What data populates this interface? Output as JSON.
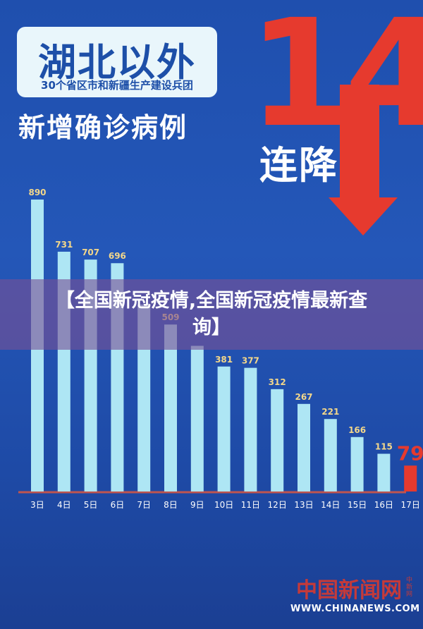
{
  "header": {
    "title": "湖北以外",
    "subtitle": "30个省区市和新疆生产建设兵团",
    "line2": "新增确诊病例",
    "big_number": "14",
    "consecutive_label": "连降"
  },
  "banner": {
    "text": "【全国新冠疫情,全国新冠疫情最新查询】"
  },
  "source": {
    "name": "中国新闻网",
    "badge": "中新网",
    "url": "WWW.CHINANEWS.COM"
  },
  "colors": {
    "bar": "#aee6f4",
    "highlight_bar": "#e63a2e",
    "axis": "#c0554f",
    "label": "#f3d78a"
  },
  "chart_data": {
    "type": "bar",
    "categories": [
      "3日",
      "4日",
      "5日",
      "6日",
      "7日",
      "8日",
      "9日",
      "10日",
      "11日",
      "12日",
      "13日",
      "14日",
      "15日",
      "16日",
      "17日"
    ],
    "values": [
      890,
      731,
      707,
      696,
      570,
      509,
      444,
      381,
      377,
      312,
      267,
      221,
      166,
      115,
      79
    ],
    "value_labels": [
      "890",
      "731",
      "707",
      "696",
      "",
      "509",
      "",
      "381",
      "377",
      "312",
      "267",
      "221",
      "166",
      "115",
      "79"
    ],
    "highlight_index": 14,
    "title": "",
    "xlabel": "",
    "ylabel": "",
    "ylim": [
      0,
      1000
    ]
  }
}
